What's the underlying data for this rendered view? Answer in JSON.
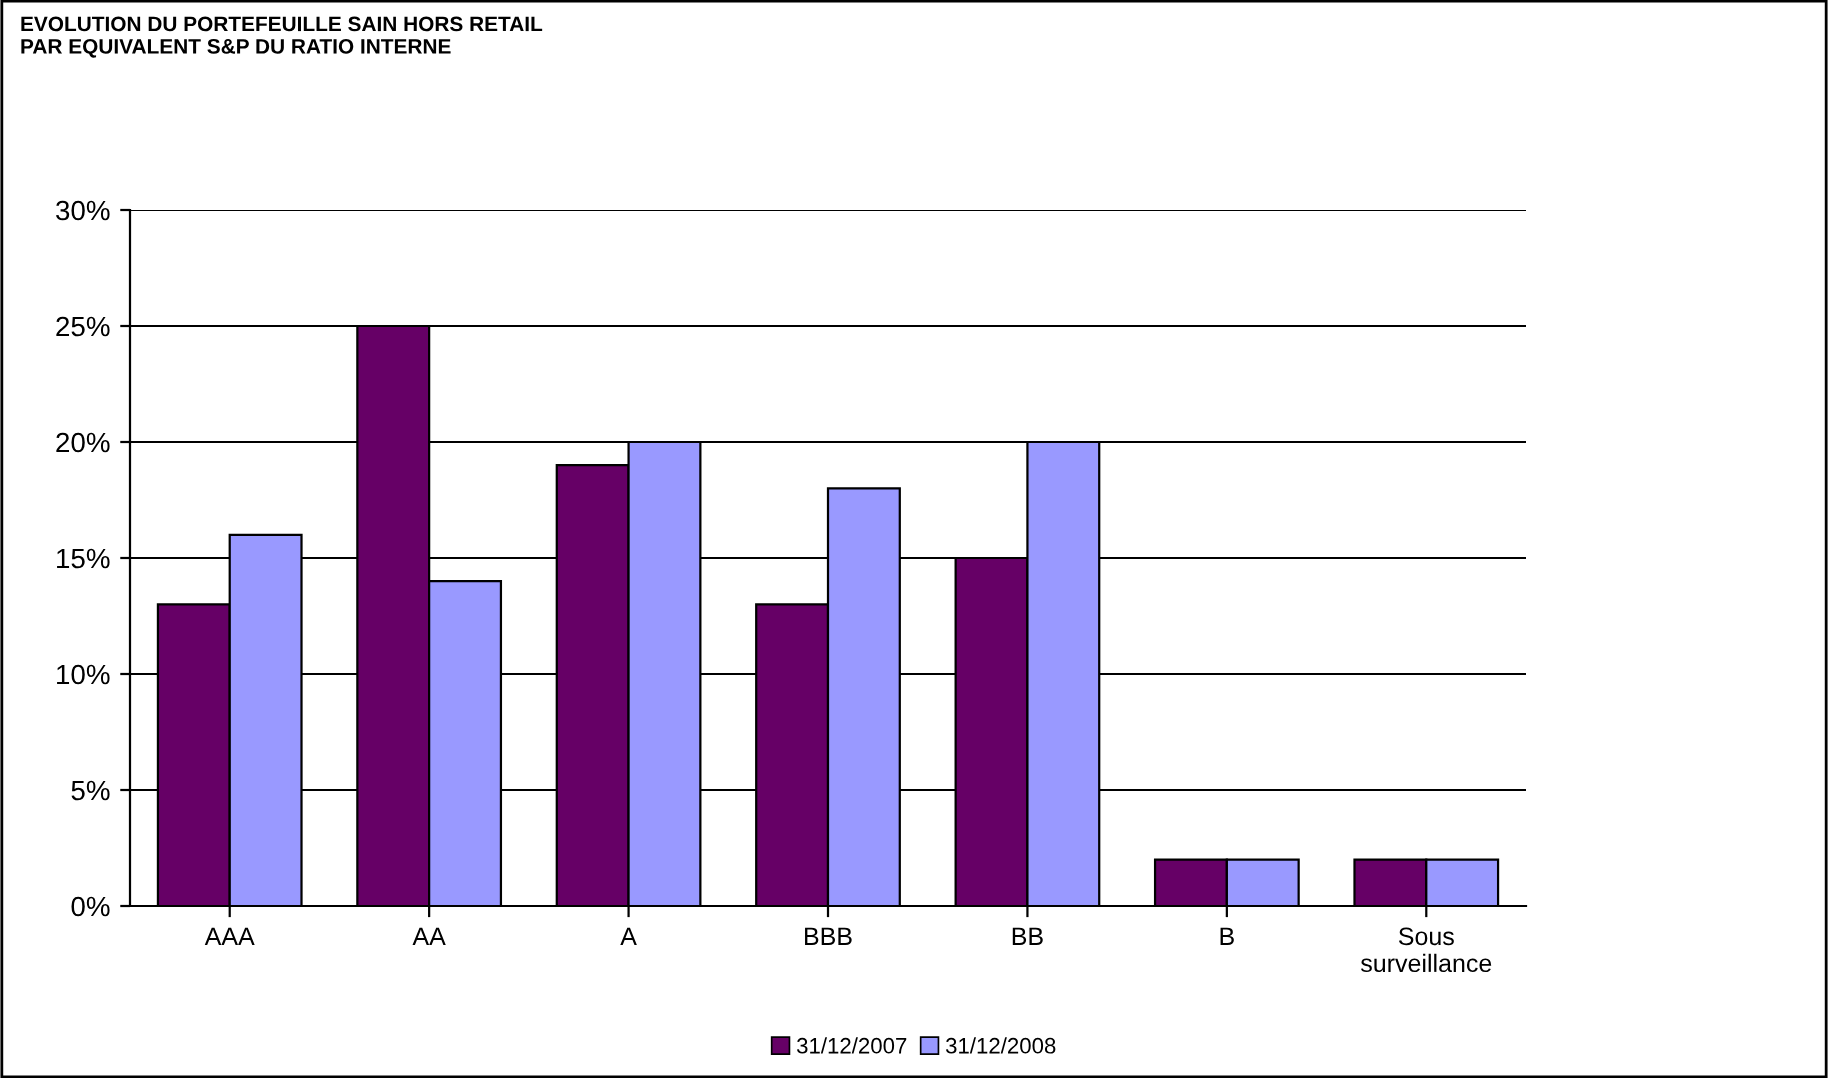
{
  "chart_data": {
    "type": "bar",
    "title": "EVOLUTION DU PORTEFEUILLE SAIN HORS RETAIL\nPAR EQUIVALENT S&P DU RATIO INTERNE",
    "categories": [
      "AAA",
      "AA",
      "A",
      "BBB",
      "BB",
      "B",
      "Sous\nsurveillance"
    ],
    "series": [
      {
        "name": "31/12/2007",
        "color": "#660066",
        "values": [
          13,
          25,
          19,
          13,
          15,
          2,
          2
        ]
      },
      {
        "name": "31/12/2008",
        "color": "#9999ff",
        "values": [
          16,
          14,
          20,
          18,
          20,
          2,
          2
        ]
      }
    ],
    "ylim": [
      0,
      30
    ],
    "yticks": [
      {
        "value": 0,
        "label": "0%"
      },
      {
        "value": 5,
        "label": "5%"
      },
      {
        "value": 10,
        "label": "10%"
      },
      {
        "value": 15,
        "label": "15%"
      },
      {
        "value": 20,
        "label": "20%"
      },
      {
        "value": 25,
        "label": "25%"
      },
      {
        "value": 30,
        "label": "30%"
      }
    ],
    "grid": "y",
    "legend": "bottom"
  }
}
